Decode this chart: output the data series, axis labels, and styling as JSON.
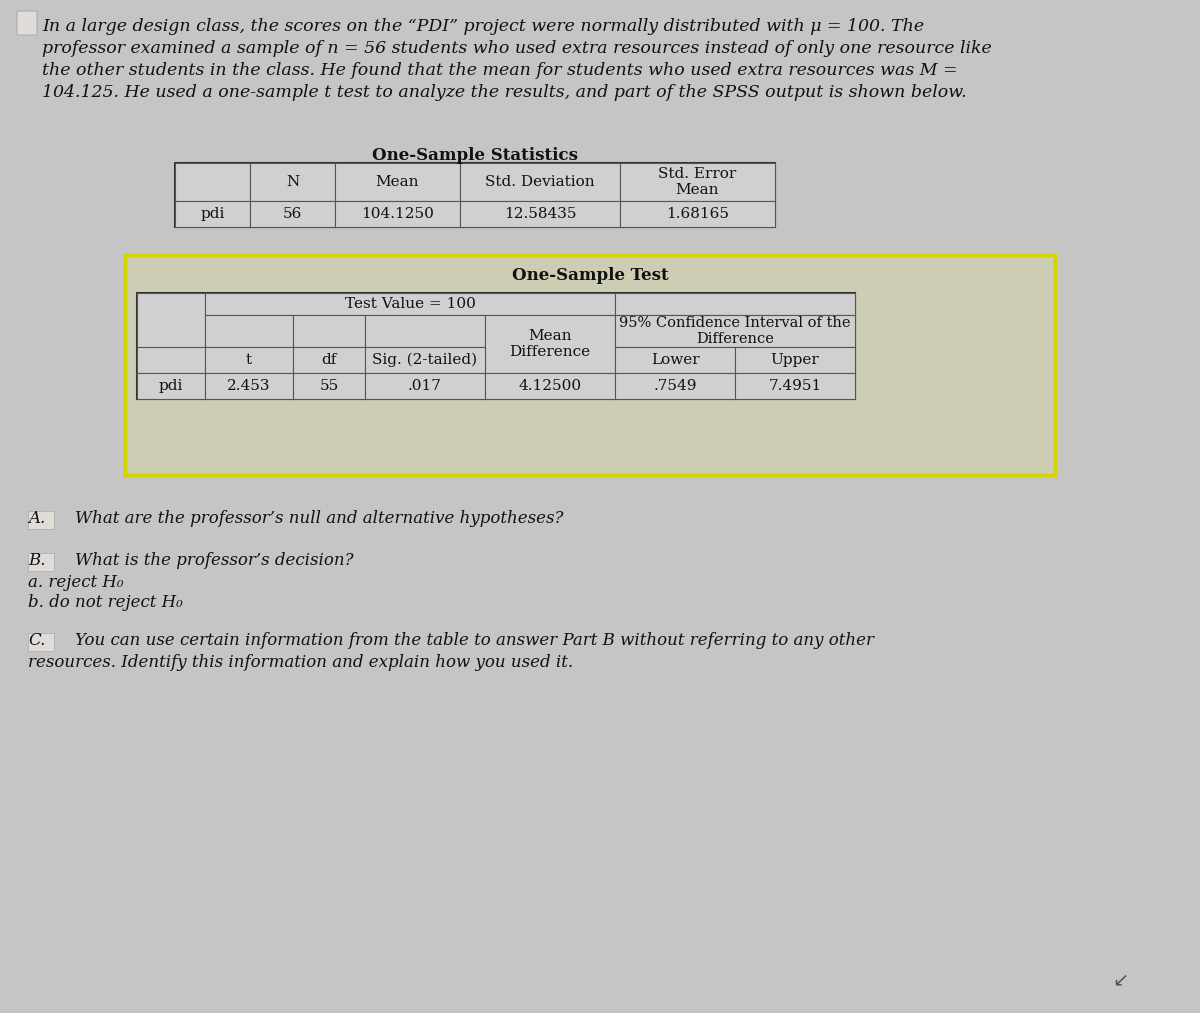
{
  "bg_color": "#c5c5c5",
  "intro_text_line1": "In a large design class, the scores on the “PDI” project were normally distributed with μ = 100. The",
  "intro_text_line2": "professor examined a sample of n = 56 students who used extra resources instead of only one resource like",
  "intro_text_line3": "the other students in the class. He found that the mean for students who used extra resources was M =",
  "intro_text_line4": "104.125. He used a one-sample t test to analyze the results, and part of the SPSS output is shown below.",
  "table1_title": "One-Sample Statistics",
  "table1_headers": [
    "",
    "N",
    "Mean",
    "Std. Deviation",
    "Std. Error\nMean"
  ],
  "table1_row": [
    "pdi",
    "56",
    "104.1250",
    "12.58435",
    "1.68165"
  ],
  "table2_outer_title": "One-Sample Test",
  "table2_inner_title": "Test Value = 100",
  "table2_row": [
    "pdi",
    "2.453",
    "55",
    ".017",
    "4.12500",
    ".7549",
    "7.4951"
  ],
  "question_A": "What are the professor’s null and alternative hypotheses?",
  "question_B_title": "What is the professor’s decision?",
  "question_B_a": "a. reject H₀",
  "question_B_b": "b. do not reject H₀",
  "question_C_line1": "You can use certain information from the table to answer Part B without referring to any other",
  "question_C_line2": "resources. Identify this information and explain how you used it.",
  "highlight_color": "#d4d400",
  "text_color": "#111111",
  "font_size_intro": 12.5,
  "font_size_table_title": 12,
  "font_size_table": 11,
  "font_size_questions": 12
}
